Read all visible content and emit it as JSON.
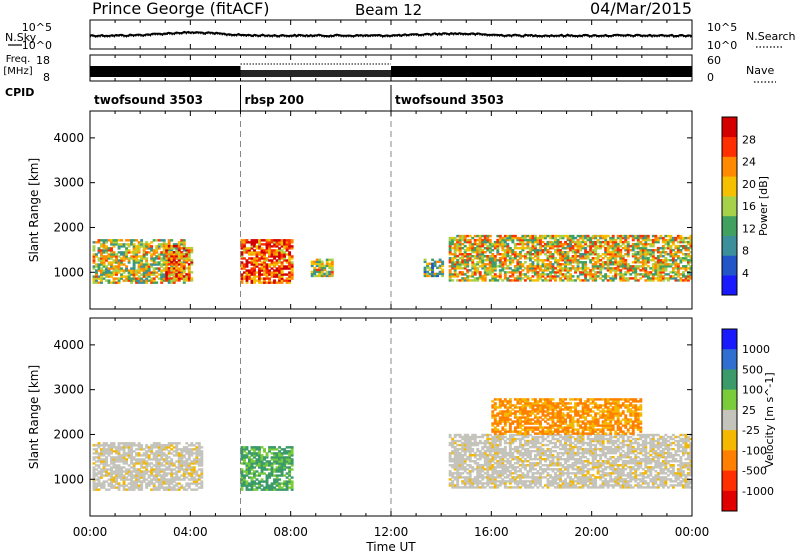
{
  "header": {
    "station": "Prince George (fitACF)",
    "beam": "Beam 12",
    "date": "04/Mar/2015"
  },
  "strips": {
    "nsky_label": "N.Sky",
    "nsky_ticks": [
      "10^5",
      "10^0"
    ],
    "nsearch_label": "N.Search",
    "freq_label_1": "Freq.",
    "freq_label_2": "[MHz]",
    "freq_ticks": [
      "18",
      "8"
    ],
    "nave_label": "Nave",
    "nave_ticks": [
      "60",
      "0"
    ],
    "cpid_label": "CPID"
  },
  "cpid_segments": [
    {
      "label": "twofsound 3503",
      "start_hour": 0,
      "end_hour": 6
    },
    {
      "label": "rbsp 200",
      "start_hour": 6,
      "end_hour": 12
    },
    {
      "label": "twofsound 3503",
      "start_hour": 12,
      "end_hour": 24
    }
  ],
  "axes": {
    "ylabel": "Slant Range [km]",
    "yticks": [
      "1000",
      "2000",
      "3000",
      "4000"
    ],
    "xlabel": "Time UT",
    "xticks": [
      "00:00",
      "04:00",
      "08:00",
      "12:00",
      "16:00",
      "20:00",
      "00:00"
    ]
  },
  "chart_data": [
    {
      "type": "heatmap",
      "name": "power",
      "xlabel": "",
      "ylabel": "Slant Range [km]",
      "xlim": [
        0,
        24
      ],
      "ylim": [
        180,
        4600
      ],
      "colorbar": {
        "label": "Power [dB]",
        "ticks": [
          "4",
          "8",
          "12",
          "16",
          "20",
          "24",
          "28"
        ],
        "range": [
          0,
          30
        ],
        "colors": [
          "#1a1aff",
          "#2255c8",
          "#3a8f9a",
          "#3fa060",
          "#a6d24a",
          "#f5c000",
          "#ff8a00",
          "#ff3000",
          "#d40000"
        ]
      },
      "regions": [
        {
          "x": [
            0.1,
            3.8
          ],
          "y": [
            750,
            1700
          ],
          "level": 0.55
        },
        {
          "x": [
            3.0,
            4.1
          ],
          "y": [
            800,
            1600
          ],
          "level": 0.75
        },
        {
          "x": [
            6.0,
            8.0
          ],
          "y": [
            750,
            1700
          ],
          "level": 0.85
        },
        {
          "x": [
            8.8,
            9.6
          ],
          "y": [
            900,
            1300
          ],
          "level": 0.55
        },
        {
          "x": [
            13.3,
            14.0
          ],
          "y": [
            900,
            1300
          ],
          "level": 0.45
        },
        {
          "x": [
            14.3,
            24.0
          ],
          "y": [
            800,
            1800
          ],
          "level": 0.6
        }
      ]
    },
    {
      "type": "heatmap",
      "name": "velocity",
      "xlabel": "Time UT",
      "ylabel": "Slant Range [km]",
      "xlim": [
        0,
        24
      ],
      "ylim": [
        180,
        4600
      ],
      "colorbar": {
        "label": "Velocity [m s^-1]",
        "ticks": [
          "1000",
          "500",
          "100",
          "25",
          "-25",
          "-100",
          "-500",
          "-1000"
        ],
        "range": [
          -1200,
          1200
        ],
        "colors": [
          "#1a1aff",
          "#2f6fd0",
          "#3a9a6a",
          "#7acc3a",
          "#c4c4bc",
          "#f5b800",
          "#ff8000",
          "#ff3000",
          "#e00000"
        ]
      },
      "regions": [
        {
          "x": [
            0.1,
            4.5
          ],
          "y": [
            750,
            1800
          ],
          "value": 0
        },
        {
          "x": [
            6.0,
            8.0
          ],
          "y": [
            750,
            1700
          ],
          "value": 200
        },
        {
          "x": [
            14.3,
            24.0
          ],
          "y": [
            800,
            2000
          ],
          "value": 0
        },
        {
          "x": [
            16.0,
            22.0
          ],
          "y": [
            2000,
            2800
          ],
          "value": -300
        }
      ]
    }
  ]
}
